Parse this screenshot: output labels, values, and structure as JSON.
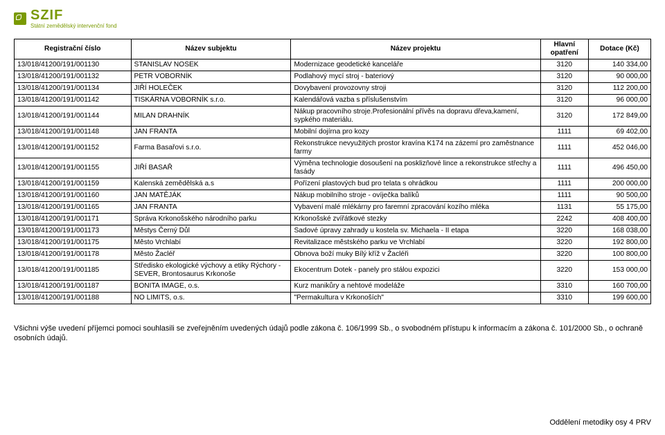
{
  "logo": {
    "acronym": "SZIF",
    "subtitle": "Státní zemědělský intervenční fond",
    "brand_color": "#7a9a01"
  },
  "table": {
    "headers": [
      "Registrační číslo",
      "Název subjektu",
      "Název projektu",
      "Hlavní opatření",
      "Dotace (Kč)"
    ],
    "rows": [
      [
        "13/018/41200/191/001130",
        "STANISLAV NOSEK",
        "Modernizace geodetické kanceláře",
        "3120",
        "140 334,00"
      ],
      [
        "13/018/41200/191/001132",
        "PETR VOBORNÍK",
        "Podlahový mycí stroj - bateriový",
        "3120",
        "90 000,00"
      ],
      [
        "13/018/41200/191/001134",
        "JIŘÍ HOLEČEK",
        "Dovybavení provozovny stroji",
        "3120",
        "112 200,00"
      ],
      [
        "13/018/41200/191/001142",
        "TISKÁRNA VOBORNÍK s.r.o.",
        "Kalendářová vazba s příslušenstvím",
        "3120",
        "96 000,00"
      ],
      [
        "13/018/41200/191/001144",
        "MILAN DRAHNÍK",
        "Nákup pracovního stroje.Profesionální přívěs na dopravu dřeva,kamení, sypkého materiálu.",
        "3120",
        "172 849,00"
      ],
      [
        "13/018/41200/191/001148",
        "JAN FRANTA",
        "Mobilní dojírna pro kozy",
        "1111",
        "69 402,00"
      ],
      [
        "13/018/41200/191/001152",
        "Farma Basařovi s.r.o.",
        "Rekonstrukce nevyužitých prostor kravína K174 na zázemí pro zaměstnance farmy",
        "1111",
        "452 046,00"
      ],
      [
        "13/018/41200/191/001155",
        "JIŘÍ BASAŘ",
        "Výměna technologie dosoušení na posklizňové lince a rekonstrukce střechy a fasády",
        "1111",
        "496 450,00"
      ],
      [
        "13/018/41200/191/001159",
        "Kalenská zemědělská a.s",
        "Pořízení plastových bud pro telata s ohrádkou",
        "1111",
        "200 000,00"
      ],
      [
        "13/018/41200/191/001160",
        "JAN MATĚJÁK",
        "Nákup mobilního stroje - ovíječka balíků",
        "1111",
        "90 500,00"
      ],
      [
        "13/018/41200/191/001165",
        "JAN FRANTA",
        "Vybavení malé mlékárny pro faremní zpracování kozího mléka",
        "1131",
        "55 175,00"
      ],
      [
        "13/018/41200/191/001171",
        "Správa Krkonošského národního parku",
        "Krkonošské zvířátkové stezky",
        "2242",
        "408 400,00"
      ],
      [
        "13/018/41200/191/001173",
        "Městys Černý Důl",
        "Sadové úpravy zahrady u kostela sv. Michaela - II etapa",
        "3220",
        "168 038,00"
      ],
      [
        "13/018/41200/191/001175",
        "Město Vrchlabí",
        "Revitalizace městského parku ve Vrchlabí",
        "3220",
        "192 800,00"
      ],
      [
        "13/018/41200/191/001178",
        "Město Žacléř",
        "Obnova boží muky Bílý kříž v Žacléři",
        "3220",
        "100 800,00"
      ],
      [
        "13/018/41200/191/001185",
        "Středisko ekologické výchovy a etiky Rýchory - SEVER, Brontosaurus Krkonoše",
        "Ekocentrum Dotek - panely pro stálou expozici",
        "3220",
        "153 000,00"
      ],
      [
        "13/018/41200/191/001187",
        "BONITA IMAGE, o.s.",
        "Kurz manikůry a nehtové modeláže",
        "3310",
        "160 700,00"
      ],
      [
        "13/018/41200/191/001188",
        "NO LIMITS, o.s.",
        "\"Permakultura v Krkonoších\"",
        "3310",
        "199 600,00"
      ]
    ]
  },
  "footnote": "Všichni výše uvedení příjemci pomoci souhlasili se zveřejněním uvedených údajů podle zákona č. 106/1999 Sb., o svobodném přístupu k informacím a zákona č. 101/2000 Sb., o ochraně osobních údajů.",
  "footer_right": "Oddělení metodiky osy 4 PRV"
}
